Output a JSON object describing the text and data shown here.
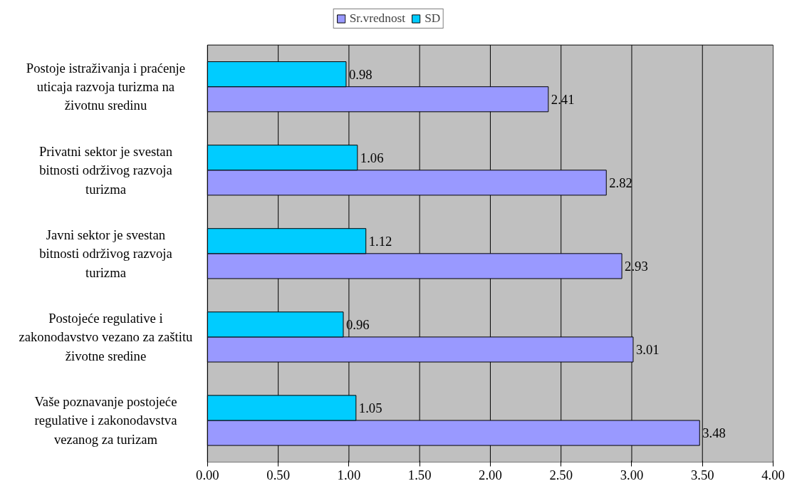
{
  "chart_data": {
    "type": "bar",
    "orientation": "horizontal",
    "categories": [
      "Postoje istraživanja i praćenje uticaja razvoja turizma na životnu sredinu",
      "Privatni sektor je svestan bitnosti održivog razvoja turizma",
      "Javni sektor je svestan bitnosti održivog razvoja turizma",
      "Postojeće regulative i zakonodavstvo vezano za zaštitu životne sredine",
      "Vaše poznavanje postojeće regulative i zakonodavstva vezanog za turizam"
    ],
    "series": [
      {
        "name": "Sr.vrednost",
        "color": "#9999ff",
        "values": [
          2.41,
          2.82,
          2.93,
          3.01,
          3.48
        ]
      },
      {
        "name": "SD",
        "color": "#00ccff",
        "values": [
          0.98,
          1.06,
          1.12,
          0.96,
          1.05
        ]
      }
    ],
    "xlim": [
      0,
      4
    ],
    "xticks": [
      {
        "value": 0,
        "label": "0.00"
      },
      {
        "value": 0.5,
        "label": "0.50"
      },
      {
        "value": 1,
        "label": "1.00"
      },
      {
        "value": 1.5,
        "label": "1.50"
      },
      {
        "value": 2,
        "label": "2.00"
      },
      {
        "value": 2.5,
        "label": "2.50"
      },
      {
        "value": 3,
        "label": "3.00"
      },
      {
        "value": 3.5,
        "label": "3.50"
      },
      {
        "value": 4,
        "label": "4.00"
      }
    ],
    "grid": "x",
    "legend": "top",
    "data_labels": true
  }
}
